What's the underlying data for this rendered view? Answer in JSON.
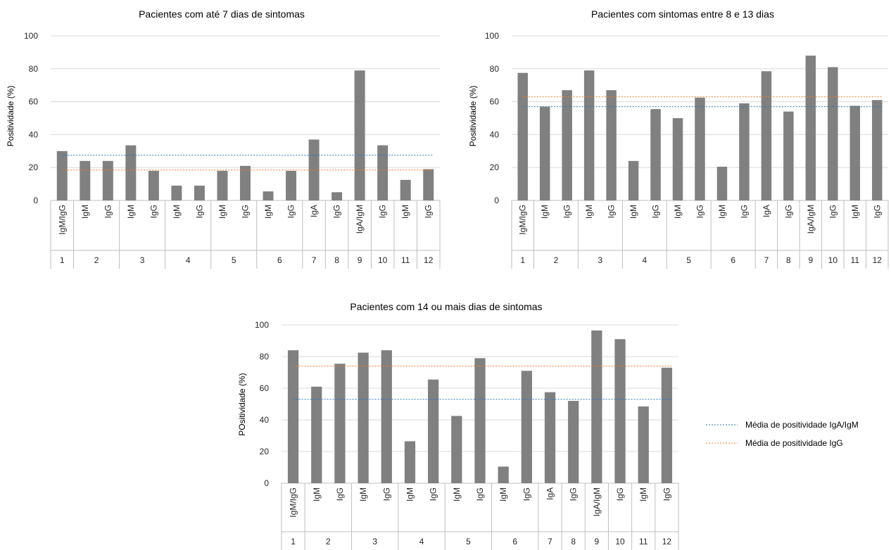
{
  "chart_data": [
    {
      "type": "bar",
      "title": "Pacientes com até 7 dias de sintomas",
      "ylabel": "Positividade (%)",
      "ylim": [
        0,
        100
      ],
      "yticks": [
        0,
        20,
        40,
        60,
        80,
        100
      ],
      "grid": true,
      "categories": [
        "IgM/IgG",
        "IgM",
        "IgG",
        "IgM",
        "IgG",
        "IgM",
        "IgG",
        "IgM",
        "IgG",
        "IgM",
        "IgG",
        "IgA",
        "IgG",
        "IgA/IgM",
        "IgG",
        "IgM",
        "IgG"
      ],
      "groups": [
        {
          "label": "1",
          "span": 1
        },
        {
          "label": "2",
          "span": 2
        },
        {
          "label": "3",
          "span": 2
        },
        {
          "label": "4",
          "span": 2
        },
        {
          "label": "5",
          "span": 2
        },
        {
          "label": "6",
          "span": 2
        },
        {
          "label": "7",
          "span": 1
        },
        {
          "label": "8",
          "span": 1
        },
        {
          "label": "9",
          "span": 1
        },
        {
          "label": "10",
          "span": 1
        },
        {
          "label": "11",
          "span": 1
        },
        {
          "label": "12",
          "span": 1
        }
      ],
      "values": [
        30,
        24,
        24,
        33.5,
        18,
        9,
        9,
        18,
        21,
        5.5,
        18,
        37,
        5,
        79,
        33.5,
        12.5,
        19
      ],
      "avg_iga_igm": 27.5,
      "avg_igg": 18.5
    },
    {
      "type": "bar",
      "title": "Pacientes com sintomas entre 8 e 13 dias",
      "ylabel": "Positividade (%)",
      "ylim": [
        0,
        100
      ],
      "yticks": [
        0,
        20,
        40,
        60,
        80,
        100
      ],
      "grid": true,
      "categories": [
        "IgM/IgG",
        "IgM",
        "IgG",
        "IgM",
        "IgG",
        "IgM",
        "IgG",
        "IgM",
        "IgG",
        "IgM",
        "IgG",
        "IgA",
        "IgG",
        "IgA/IgM",
        "IgG",
        "IgM",
        "IgG"
      ],
      "groups": [
        {
          "label": "1",
          "span": 1
        },
        {
          "label": "2",
          "span": 2
        },
        {
          "label": "3",
          "span": 2
        },
        {
          "label": "4",
          "span": 2
        },
        {
          "label": "5",
          "span": 2
        },
        {
          "label": "6",
          "span": 2
        },
        {
          "label": "7",
          "span": 1
        },
        {
          "label": "8",
          "span": 1
        },
        {
          "label": "9",
          "span": 1
        },
        {
          "label": "10",
          "span": 1
        },
        {
          "label": "11",
          "span": 1
        },
        {
          "label": "12",
          "span": 1
        }
      ],
      "values": [
        77.5,
        57,
        67,
        79,
        67,
        24,
        55.5,
        50,
        62.5,
        20.5,
        59,
        78.5,
        54,
        88,
        81,
        57.5,
        61
      ],
      "avg_iga_igm": 57,
      "avg_igg": 63
    },
    {
      "type": "bar",
      "title": "Pacientes com 14 ou mais dias de sintomas",
      "ylabel": "POsitividade (%)",
      "ylim": [
        0,
        100
      ],
      "yticks": [
        0,
        20,
        40,
        60,
        80,
        100
      ],
      "grid": true,
      "categories": [
        "IgM/IgG",
        "IgM",
        "IgG",
        "IgM",
        "IgG",
        "IgM",
        "IgG",
        "IgM",
        "IgG",
        "IgM",
        "IgG",
        "IgA",
        "IgG",
        "IgA/IgM",
        "IgG",
        "IgM",
        "IgG"
      ],
      "groups": [
        {
          "label": "1",
          "span": 1
        },
        {
          "label": "2",
          "span": 2
        },
        {
          "label": "3",
          "span": 2
        },
        {
          "label": "4",
          "span": 2
        },
        {
          "label": "5",
          "span": 2
        },
        {
          "label": "6",
          "span": 2
        },
        {
          "label": "7",
          "span": 1
        },
        {
          "label": "8",
          "span": 1
        },
        {
          "label": "9",
          "span": 1
        },
        {
          "label": "10",
          "span": 1
        },
        {
          "label": "11",
          "span": 1
        },
        {
          "label": "12",
          "span": 1
        }
      ],
      "values": [
        84,
        61,
        75.5,
        82.5,
        84,
        26.5,
        65.5,
        42.5,
        79,
        10.5,
        71,
        57.5,
        52,
        96.5,
        91,
        48.5,
        73
      ],
      "avg_iga_igm": 53,
      "avg_igg": 74
    }
  ],
  "legend": {
    "placement": "right",
    "items": [
      {
        "label": "Média de positividade IgA/IgM",
        "color": "#2E75B6",
        "style": "dashed"
      },
      {
        "label": "Média de positividade IgG",
        "color": "#ED7D31",
        "style": "dashed"
      }
    ]
  },
  "colors": {
    "bar": "#808080",
    "grid": "#d9d9d9",
    "axis": "#bfbfbf",
    "text": "#262626"
  }
}
